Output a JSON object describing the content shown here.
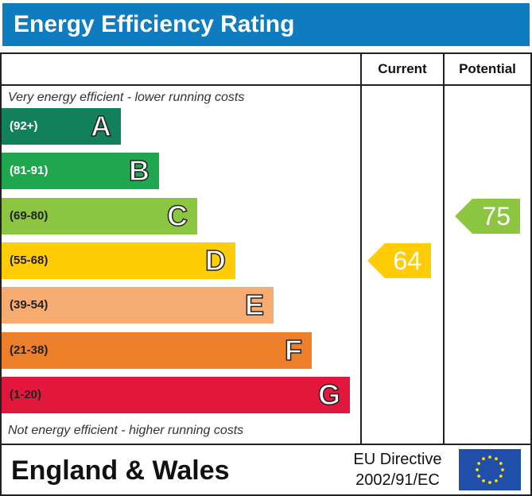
{
  "header": {
    "title": "Energy Efficiency Rating"
  },
  "columns": {
    "current": "Current",
    "potential": "Potential"
  },
  "notes": {
    "top": "Very energy efficient - lower running costs",
    "bottom": "Not energy efficient - higher running costs"
  },
  "chart_data": {
    "type": "bar",
    "title": "Energy Efficiency Rating",
    "bands": [
      {
        "letter": "A",
        "range": "(92+)",
        "color": "#12805a",
        "range_color": "#ffffff"
      },
      {
        "letter": "B",
        "range": "(81-91)",
        "color": "#1fa64f",
        "range_color": "#ffffff"
      },
      {
        "letter": "C",
        "range": "(69-80)",
        "color": "#8cc540",
        "range_color": "#222222"
      },
      {
        "letter": "D",
        "range": "(55-68)",
        "color": "#ffcc05",
        "range_color": "#222222"
      },
      {
        "letter": "E",
        "range": "(39-54)",
        "color": "#f6ac70",
        "range_color": "#222222"
      },
      {
        "letter": "F",
        "range": "(21-38)",
        "color": "#ee7f2a",
        "range_color": "#222222"
      },
      {
        "letter": "G",
        "range": "(1-20)",
        "color": "#e2173b",
        "range_color": "#222222"
      }
    ],
    "current": {
      "value": 64,
      "band": "D",
      "color": "#ffcc05"
    },
    "potential": {
      "value": 75,
      "band": "C",
      "color": "#8cc540"
    }
  },
  "footer": {
    "title": "England & Wales",
    "directive_line1": "EU Directive",
    "directive_line2": "2002/91/EC",
    "flag_icon": "eu-flag-icon"
  }
}
